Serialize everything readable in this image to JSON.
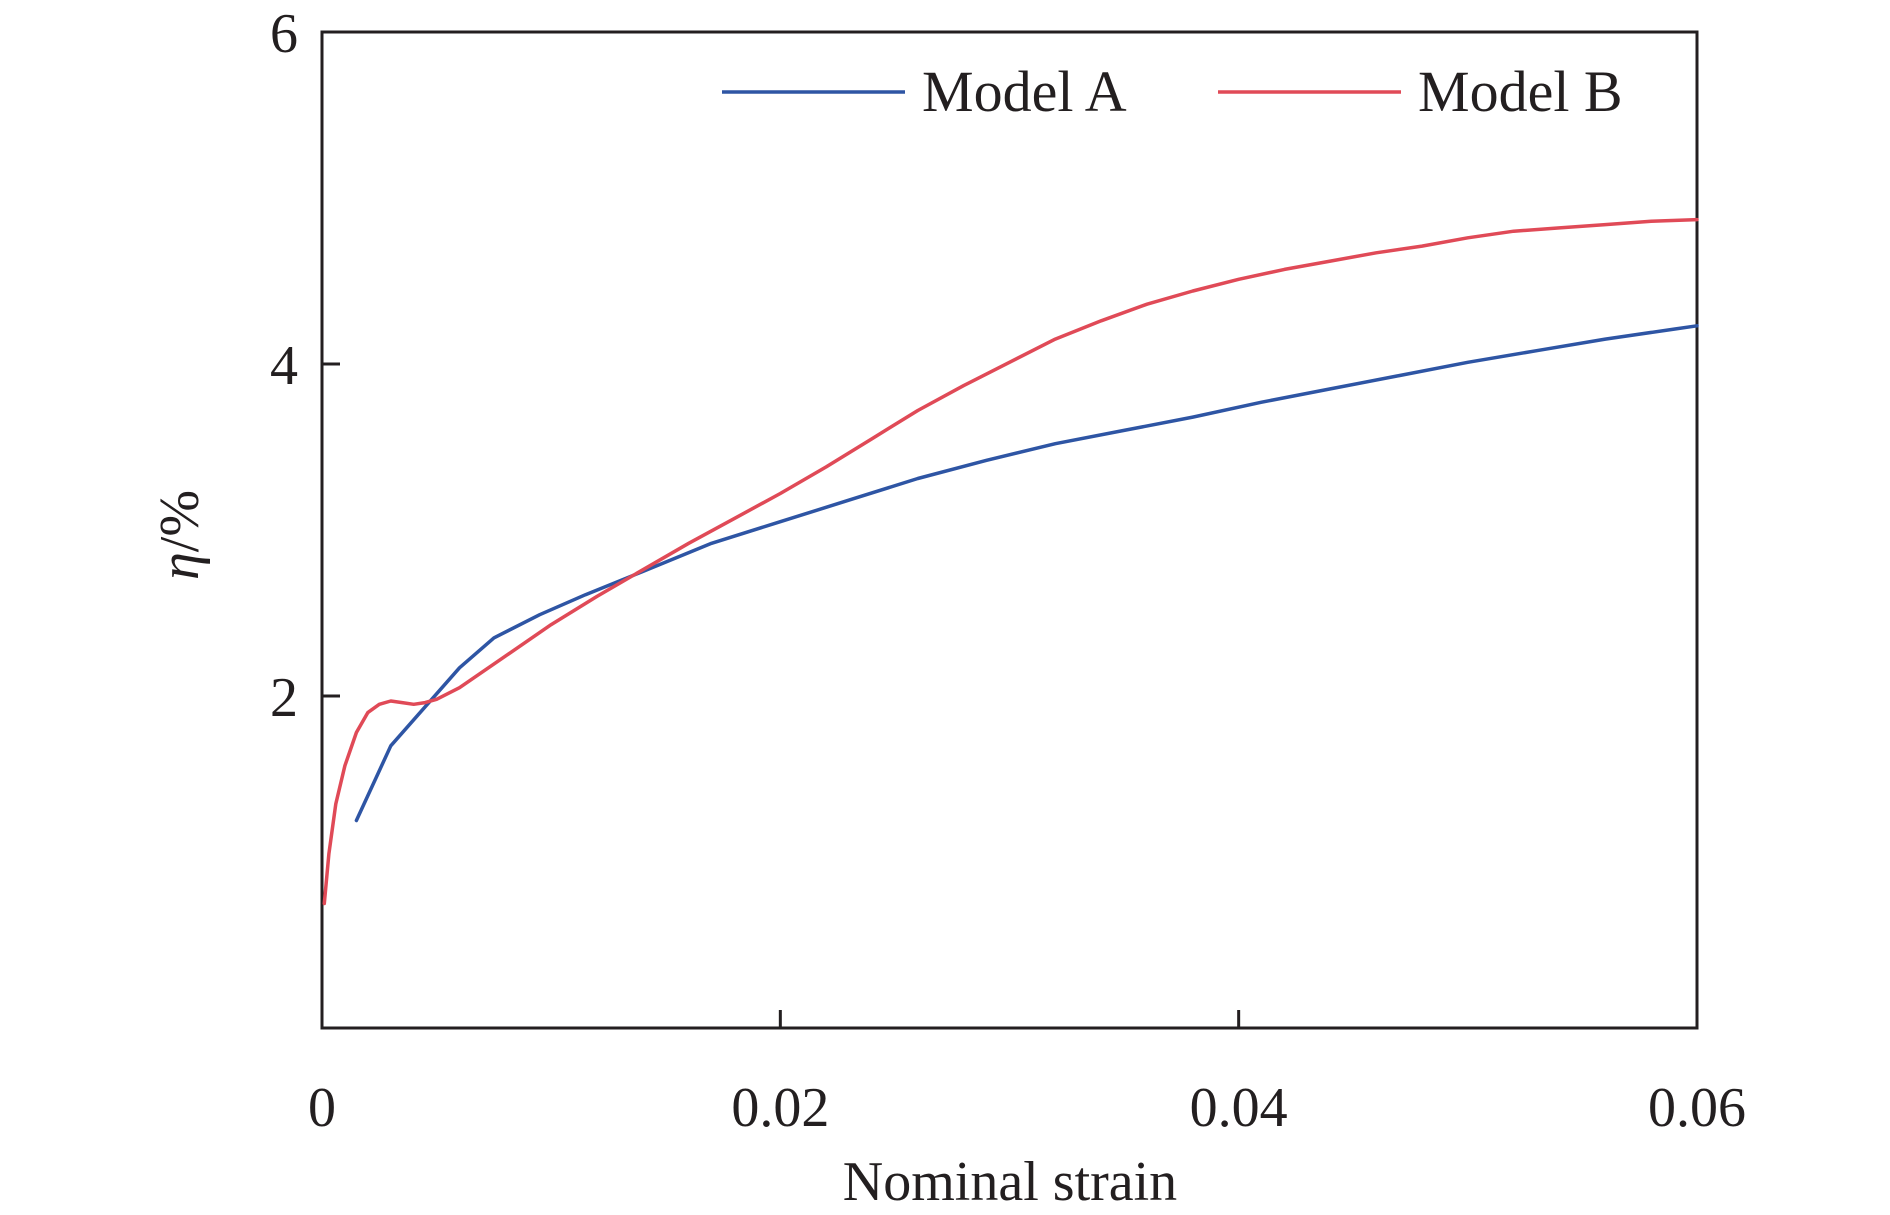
{
  "chart_data": {
    "type": "line",
    "title": "",
    "xlabel": "Nominal strain",
    "ylabel_italic": "η",
    "ylabel_rest": "/%",
    "xlim": [
      0,
      0.06
    ],
    "ylim": [
      0,
      6
    ],
    "x_ticks": [
      {
        "value": 0,
        "label": "0"
      },
      {
        "value": 0.02,
        "label": "0.02"
      },
      {
        "value": 0.04,
        "label": "0.04"
      },
      {
        "value": 0.06,
        "label": "0.06"
      }
    ],
    "y_ticks": [
      {
        "value": 2,
        "label": "2"
      },
      {
        "value": 4,
        "label": "4"
      },
      {
        "value": 6,
        "label": "6"
      }
    ],
    "grid": false,
    "legend_position": "top",
    "series": [
      {
        "name": "Model A",
        "color": "#2e55a4",
        "x": [
          0.0015,
          0.003,
          0.006,
          0.0075,
          0.0095,
          0.0115,
          0.014,
          0.017,
          0.02,
          0.023,
          0.026,
          0.029,
          0.032,
          0.035,
          0.038,
          0.041,
          0.044,
          0.047,
          0.05,
          0.053,
          0.056,
          0.059,
          0.06
        ],
        "y": [
          1.25,
          1.7,
          2.17,
          2.35,
          2.49,
          2.61,
          2.75,
          2.92,
          3.05,
          3.18,
          3.31,
          3.42,
          3.52,
          3.6,
          3.68,
          3.77,
          3.85,
          3.93,
          4.01,
          4.08,
          4.15,
          4.21,
          4.23
        ]
      },
      {
        "name": "Model B",
        "color": "#e04a57",
        "x": [
          0.0001,
          0.0003,
          0.0006,
          0.001,
          0.0015,
          0.002,
          0.0025,
          0.003,
          0.0035,
          0.004,
          0.0045,
          0.005,
          0.006,
          0.008,
          0.01,
          0.012,
          0.014,
          0.016,
          0.018,
          0.02,
          0.022,
          0.024,
          0.026,
          0.028,
          0.03,
          0.032,
          0.034,
          0.036,
          0.038,
          0.04,
          0.042,
          0.044,
          0.046,
          0.048,
          0.05,
          0.052,
          0.054,
          0.056,
          0.058,
          0.06
        ],
        "y": [
          0.75,
          1.05,
          1.35,
          1.58,
          1.78,
          1.9,
          1.95,
          1.97,
          1.96,
          1.95,
          1.96,
          1.98,
          2.05,
          2.24,
          2.43,
          2.6,
          2.76,
          2.92,
          3.07,
          3.22,
          3.38,
          3.55,
          3.72,
          3.87,
          4.01,
          4.15,
          4.26,
          4.36,
          4.44,
          4.51,
          4.57,
          4.62,
          4.67,
          4.71,
          4.76,
          4.8,
          4.82,
          4.84,
          4.86,
          4.87
        ]
      }
    ]
  }
}
